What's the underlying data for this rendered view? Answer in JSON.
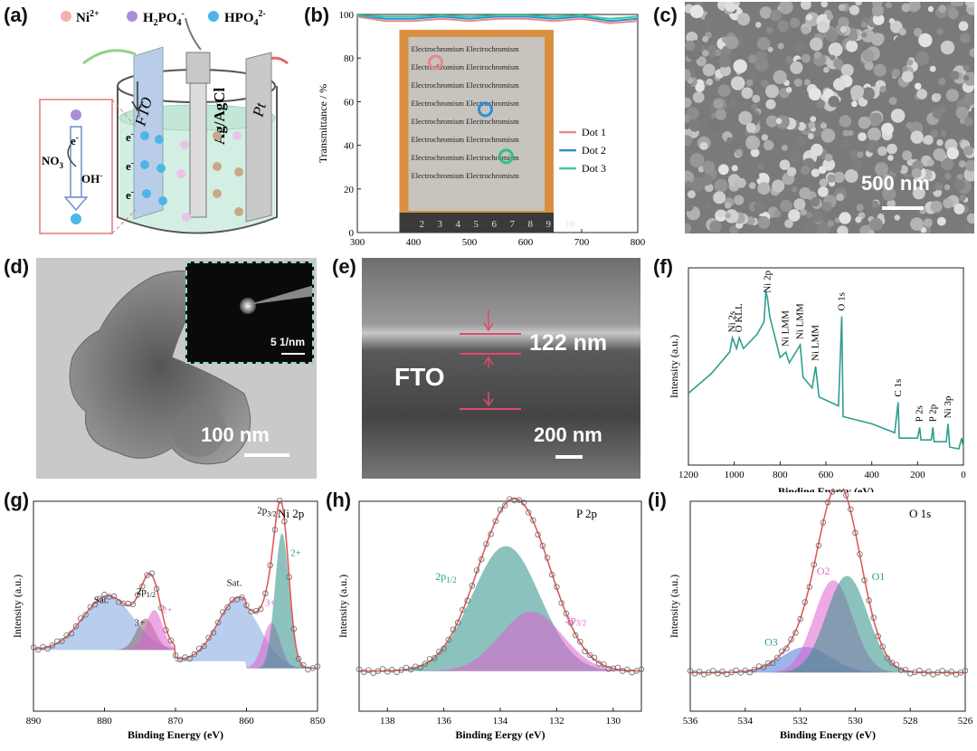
{
  "labels": {
    "a": "(a)",
    "b": "(b)",
    "c": "(c)",
    "d": "(d)",
    "e": "(e)",
    "f": "(f)",
    "g": "(g)",
    "h": "(h)",
    "i": "(i)"
  },
  "panel_a": {
    "legend": [
      "Ni",
      "H",
      "PO",
      "HPO"
    ],
    "legend_sup": [
      "2+",
      "-",
      "2-"
    ],
    "legend_sub": [
      "2",
      "4",
      "4"
    ],
    "electrode_fto": "FTO",
    "electrode_ref": "Ag/AgCl",
    "electrode_ce": "Pt",
    "electron": "e",
    "electron_sup": "-",
    "no3": "NO",
    "no3_sub": "3",
    "oh": "OH"
  },
  "panel_b": {
    "photo_text": "Electrochromism Electrochromism",
    "ruler": [
      "2",
      "3",
      "4",
      "5",
      "6",
      "7",
      "8",
      "9",
      "10"
    ]
  },
  "panel_c": {
    "scale": "500 nm"
  },
  "panel_d": {
    "scale": "100 nm",
    "inset_scale": "5 1/nm"
  },
  "panel_e": {
    "fto": "FTO",
    "thickness": "122 nm",
    "scale": "200 nm"
  },
  "colors": {
    "teal": "#2e9e8e",
    "pink": "#e06bd0",
    "red": "#e05a5a",
    "blue": "#1f8fd6",
    "green": "#2ec27e",
    "fitteal": "#3d8c86"
  },
  "chart_data": [
    {
      "id": "b",
      "type": "line",
      "xlabel": "Wavelength / nm",
      "ylabel": "Transmittance / %",
      "xlim": [
        300,
        800
      ],
      "ylim": [
        0,
        100
      ],
      "xticks": [
        300,
        400,
        500,
        600,
        700,
        800
      ],
      "yticks": [
        0,
        20,
        40,
        60,
        80,
        100
      ],
      "series": [
        {
          "name": "Dot 1",
          "color": "#e88a8a",
          "x": [
            300,
            350,
            400,
            450,
            500,
            550,
            600,
            650,
            700,
            750,
            800
          ],
          "y": [
            99,
            97,
            97,
            98,
            97,
            98,
            98,
            97,
            98,
            96,
            97
          ]
        },
        {
          "name": "Dot 2",
          "color": "#2d8fd6",
          "x": [
            300,
            350,
            400,
            450,
            500,
            550,
            600,
            650,
            700,
            750,
            800
          ],
          "y": [
            100,
            98,
            98,
            99,
            98,
            99,
            99,
            98,
            99,
            97,
            98
          ]
        },
        {
          "name": "Dot 3",
          "color": "#3cc7a3",
          "x": [
            300,
            350,
            400,
            450,
            500,
            550,
            600,
            650,
            700,
            750,
            800
          ],
          "y": [
            101,
            99,
            99,
            100,
            99,
            100,
            100,
            99,
            100,
            98,
            99
          ]
        }
      ]
    },
    {
      "id": "f",
      "type": "line",
      "xlabel": "Binding Energy (eV)",
      "ylabel": "Intensity (a.u.)",
      "xlim": [
        1200,
        0
      ],
      "xticks": [
        1200,
        1000,
        800,
        600,
        400,
        200,
        0
      ],
      "peaks": [
        {
          "label": "Ni 2s",
          "x": 1008
        },
        {
          "label": "O KLL",
          "x": 978
        },
        {
          "label": "Ni 2p",
          "x": 855
        },
        {
          "label": "Ni LMM",
          "x": 775
        },
        {
          "label": "Ni LMM",
          "x": 712
        },
        {
          "label": "Ni LMM",
          "x": 645
        },
        {
          "label": "O 1s",
          "x": 531
        },
        {
          "label": "C 1s",
          "x": 285
        },
        {
          "label": "P 2s",
          "x": 191
        },
        {
          "label": "P 2p",
          "x": 133
        },
        {
          "label": "Ni 3p",
          "x": 67
        }
      ]
    },
    {
      "id": "g",
      "type": "line",
      "title": "Ni 2p",
      "xlabel": "Binding Energy (eV)",
      "ylabel": "Intensity (a.u.)",
      "xlim": [
        890,
        850
      ],
      "xticks": [
        890,
        880,
        870,
        860,
        850
      ],
      "components": [
        {
          "label": "Sat.",
          "center": 879.5,
          "height": 0.38,
          "width": 3.5,
          "color": "#7fa5e0"
        },
        {
          "label": "3+",
          "center": 874.2,
          "height": 0.22,
          "width": 1.3,
          "color": "#8a6b6b"
        },
        {
          "label": "2+",
          "center": 873.0,
          "height": 0.28,
          "width": 1.2,
          "color": "#e060d0"
        },
        {
          "label": "Sat.",
          "center": 861.0,
          "height": 0.45,
          "width": 3.0,
          "color": "#7fa5e0"
        },
        {
          "label": "3+",
          "center": 856.5,
          "height": 0.32,
          "width": 1.2,
          "color": "#e060d0"
        },
        {
          "label": "2+",
          "center": 855.0,
          "height": 0.95,
          "width": 1.0,
          "color": "#2e8f86"
        }
      ],
      "peak_labels": [
        "2p1/2",
        "2p3/2"
      ]
    },
    {
      "id": "h",
      "type": "line",
      "title": "P 2p",
      "xlabel": "Binding Eergy (eV)",
      "ylabel": "Intensity (a.u.)",
      "xlim": [
        139,
        129
      ],
      "xticks": [
        138,
        136,
        134,
        132,
        130
      ],
      "components": [
        {
          "label": "2p1/2",
          "center": 133.8,
          "height": 0.88,
          "width": 1.2,
          "color": "#2e8f86"
        },
        {
          "label": "2p3/2",
          "center": 132.9,
          "height": 0.42,
          "width": 1.1,
          "color": "#e060d0"
        }
      ]
    },
    {
      "id": "i",
      "type": "line",
      "title": "O 1s",
      "xlabel": "Binding Energy (eV)",
      "ylabel": "Intensity (a.u.)",
      "xlim": [
        536,
        526
      ],
      "xticks": [
        536,
        534,
        532,
        530,
        528,
        526
      ],
      "components": [
        {
          "label": "O3",
          "center": 531.8,
          "height": 0.18,
          "width": 0.9,
          "color": "#4a78d8"
        },
        {
          "label": "O2",
          "center": 530.8,
          "height": 0.65,
          "width": 0.7,
          "color": "#e060d0"
        },
        {
          "label": "O1",
          "center": 530.3,
          "height": 0.68,
          "width": 0.75,
          "color": "#2e8f86"
        }
      ]
    }
  ]
}
